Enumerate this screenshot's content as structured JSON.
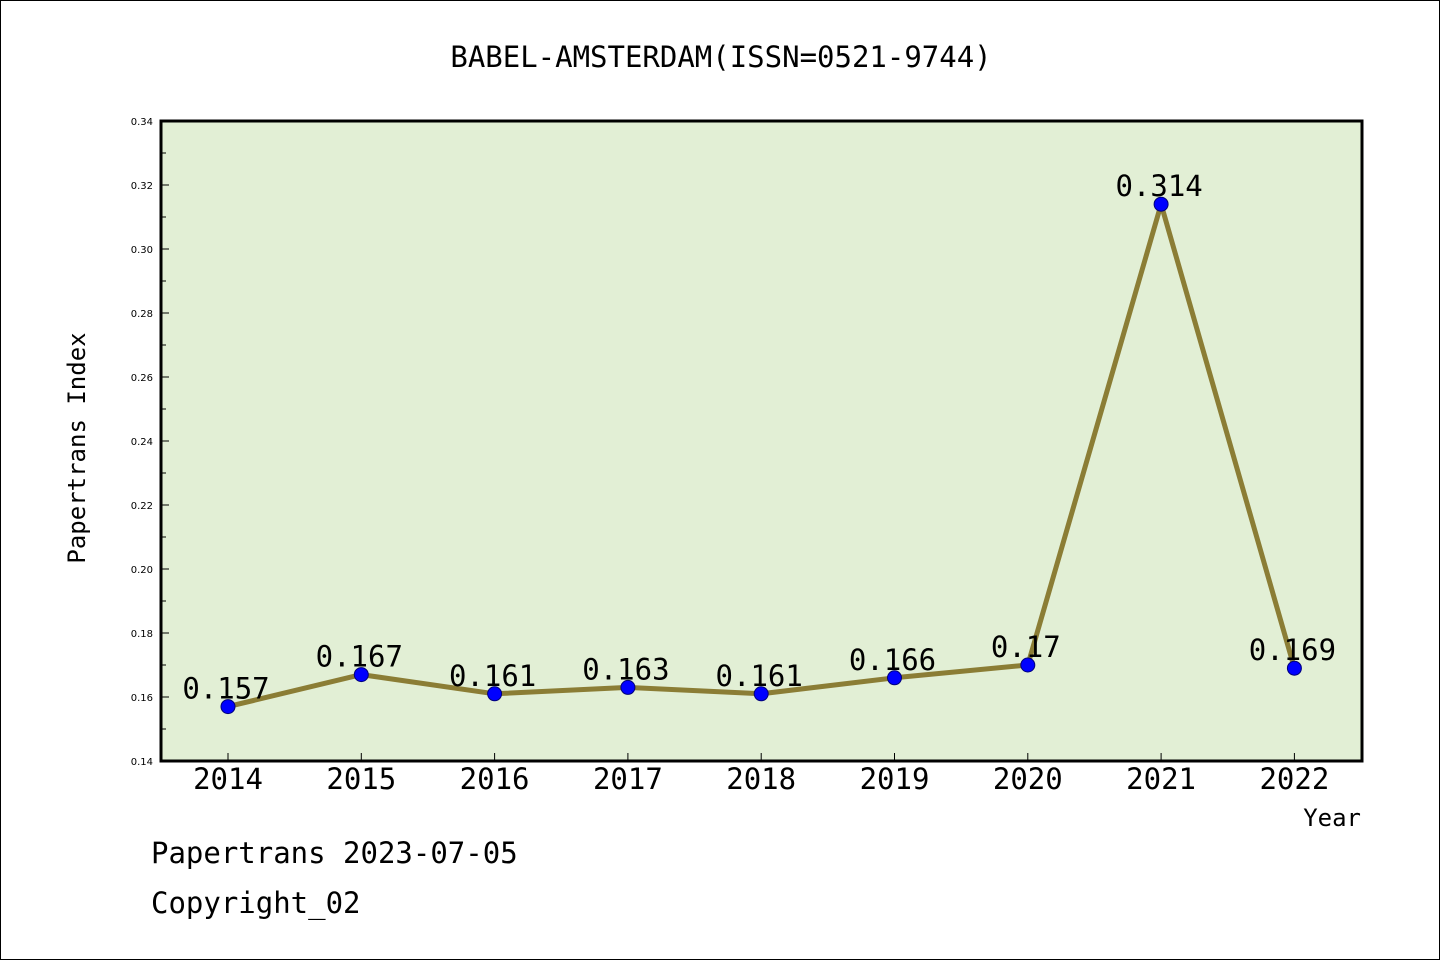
{
  "colors": {
    "plot_background": "#e2efd5",
    "line": "#8b7d35",
    "marker": "#0000ff",
    "text": "#000000"
  },
  "chart_data": {
    "type": "line",
    "title": "BABEL-AMSTERDAM(ISSN=0521-9744)",
    "xlabel": "Year",
    "ylabel": "Papertrans Index",
    "categories": [
      "2014",
      "2015",
      "2016",
      "2017",
      "2018",
      "2019",
      "2020",
      "2021",
      "2022"
    ],
    "values": [
      0.157,
      0.167,
      0.161,
      0.163,
      0.161,
      0.166,
      0.17,
      0.314,
      0.169
    ],
    "data_labels": [
      "0.157",
      "0.167",
      "0.161",
      "0.163",
      "0.161",
      "0.166",
      "0.17",
      "0.314",
      "0.169"
    ],
    "ylim": [
      0.14,
      0.34
    ],
    "yticks": [
      "0.14",
      "0.16",
      "0.18",
      "0.20",
      "0.22",
      "0.24",
      "0.26",
      "0.28",
      "0.30",
      "0.32",
      "0.34"
    ],
    "grid": false,
    "legend": "none"
  },
  "footer": {
    "date": "Papertrans 2023-07-05",
    "copyright": "Copyright_02"
  }
}
